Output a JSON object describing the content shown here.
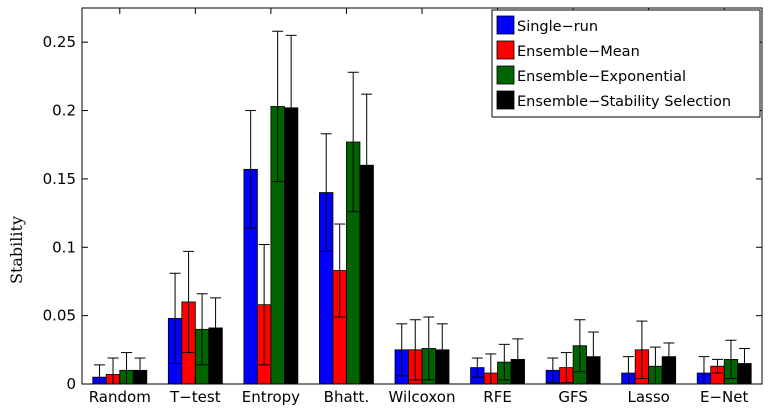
{
  "chart_data": {
    "type": "bar",
    "title": "",
    "xlabel": "",
    "ylabel": "Stability",
    "ylim": [
      0,
      0.275
    ],
    "yticks": [
      0,
      0.05,
      0.1,
      0.15,
      0.2,
      0.25
    ],
    "ytick_labels": [
      "0",
      "0.05",
      "0.1",
      "0.15",
      "0.2",
      "0.25"
    ],
    "grid": false,
    "legend_position": "top-right",
    "categories": [
      "Random",
      "T−test",
      "Entropy",
      "Bhatt.",
      "Wilcoxon",
      "RFE",
      "GFS",
      "Lasso",
      "E−Net"
    ],
    "series": [
      {
        "name": "Single−run",
        "color": "#0000ff",
        "values": [
          0.005,
          0.048,
          0.157,
          0.14,
          0.025,
          0.012,
          0.01,
          0.008,
          0.008
        ],
        "errors": [
          0.009,
          0.033,
          0.043,
          0.043,
          0.019,
          0.007,
          0.009,
          0.012,
          0.012
        ]
      },
      {
        "name": "Ensemble−Mean",
        "color": "#ff0000",
        "values": [
          0.007,
          0.06,
          0.058,
          0.083,
          0.025,
          0.008,
          0.012,
          0.025,
          0.013
        ],
        "errors": [
          0.012,
          0.037,
          0.044,
          0.034,
          0.022,
          0.014,
          0.011,
          0.021,
          0.005
        ]
      },
      {
        "name": "Ensemble−Exponential",
        "color": "#006400",
        "values": [
          0.01,
          0.04,
          0.203,
          0.177,
          0.026,
          0.016,
          0.028,
          0.013,
          0.018
        ],
        "errors": [
          0.013,
          0.026,
          0.055,
          0.051,
          0.023,
          0.013,
          0.019,
          0.014,
          0.014
        ]
      },
      {
        "name": "Ensemble−Stability Selection",
        "color": "#000000",
        "values": [
          0.01,
          0.041,
          0.202,
          0.16,
          0.025,
          0.018,
          0.02,
          0.02,
          0.015
        ],
        "errors": [
          0.009,
          0.022,
          0.053,
          0.052,
          0.019,
          0.015,
          0.018,
          0.01,
          0.011
        ]
      }
    ]
  }
}
